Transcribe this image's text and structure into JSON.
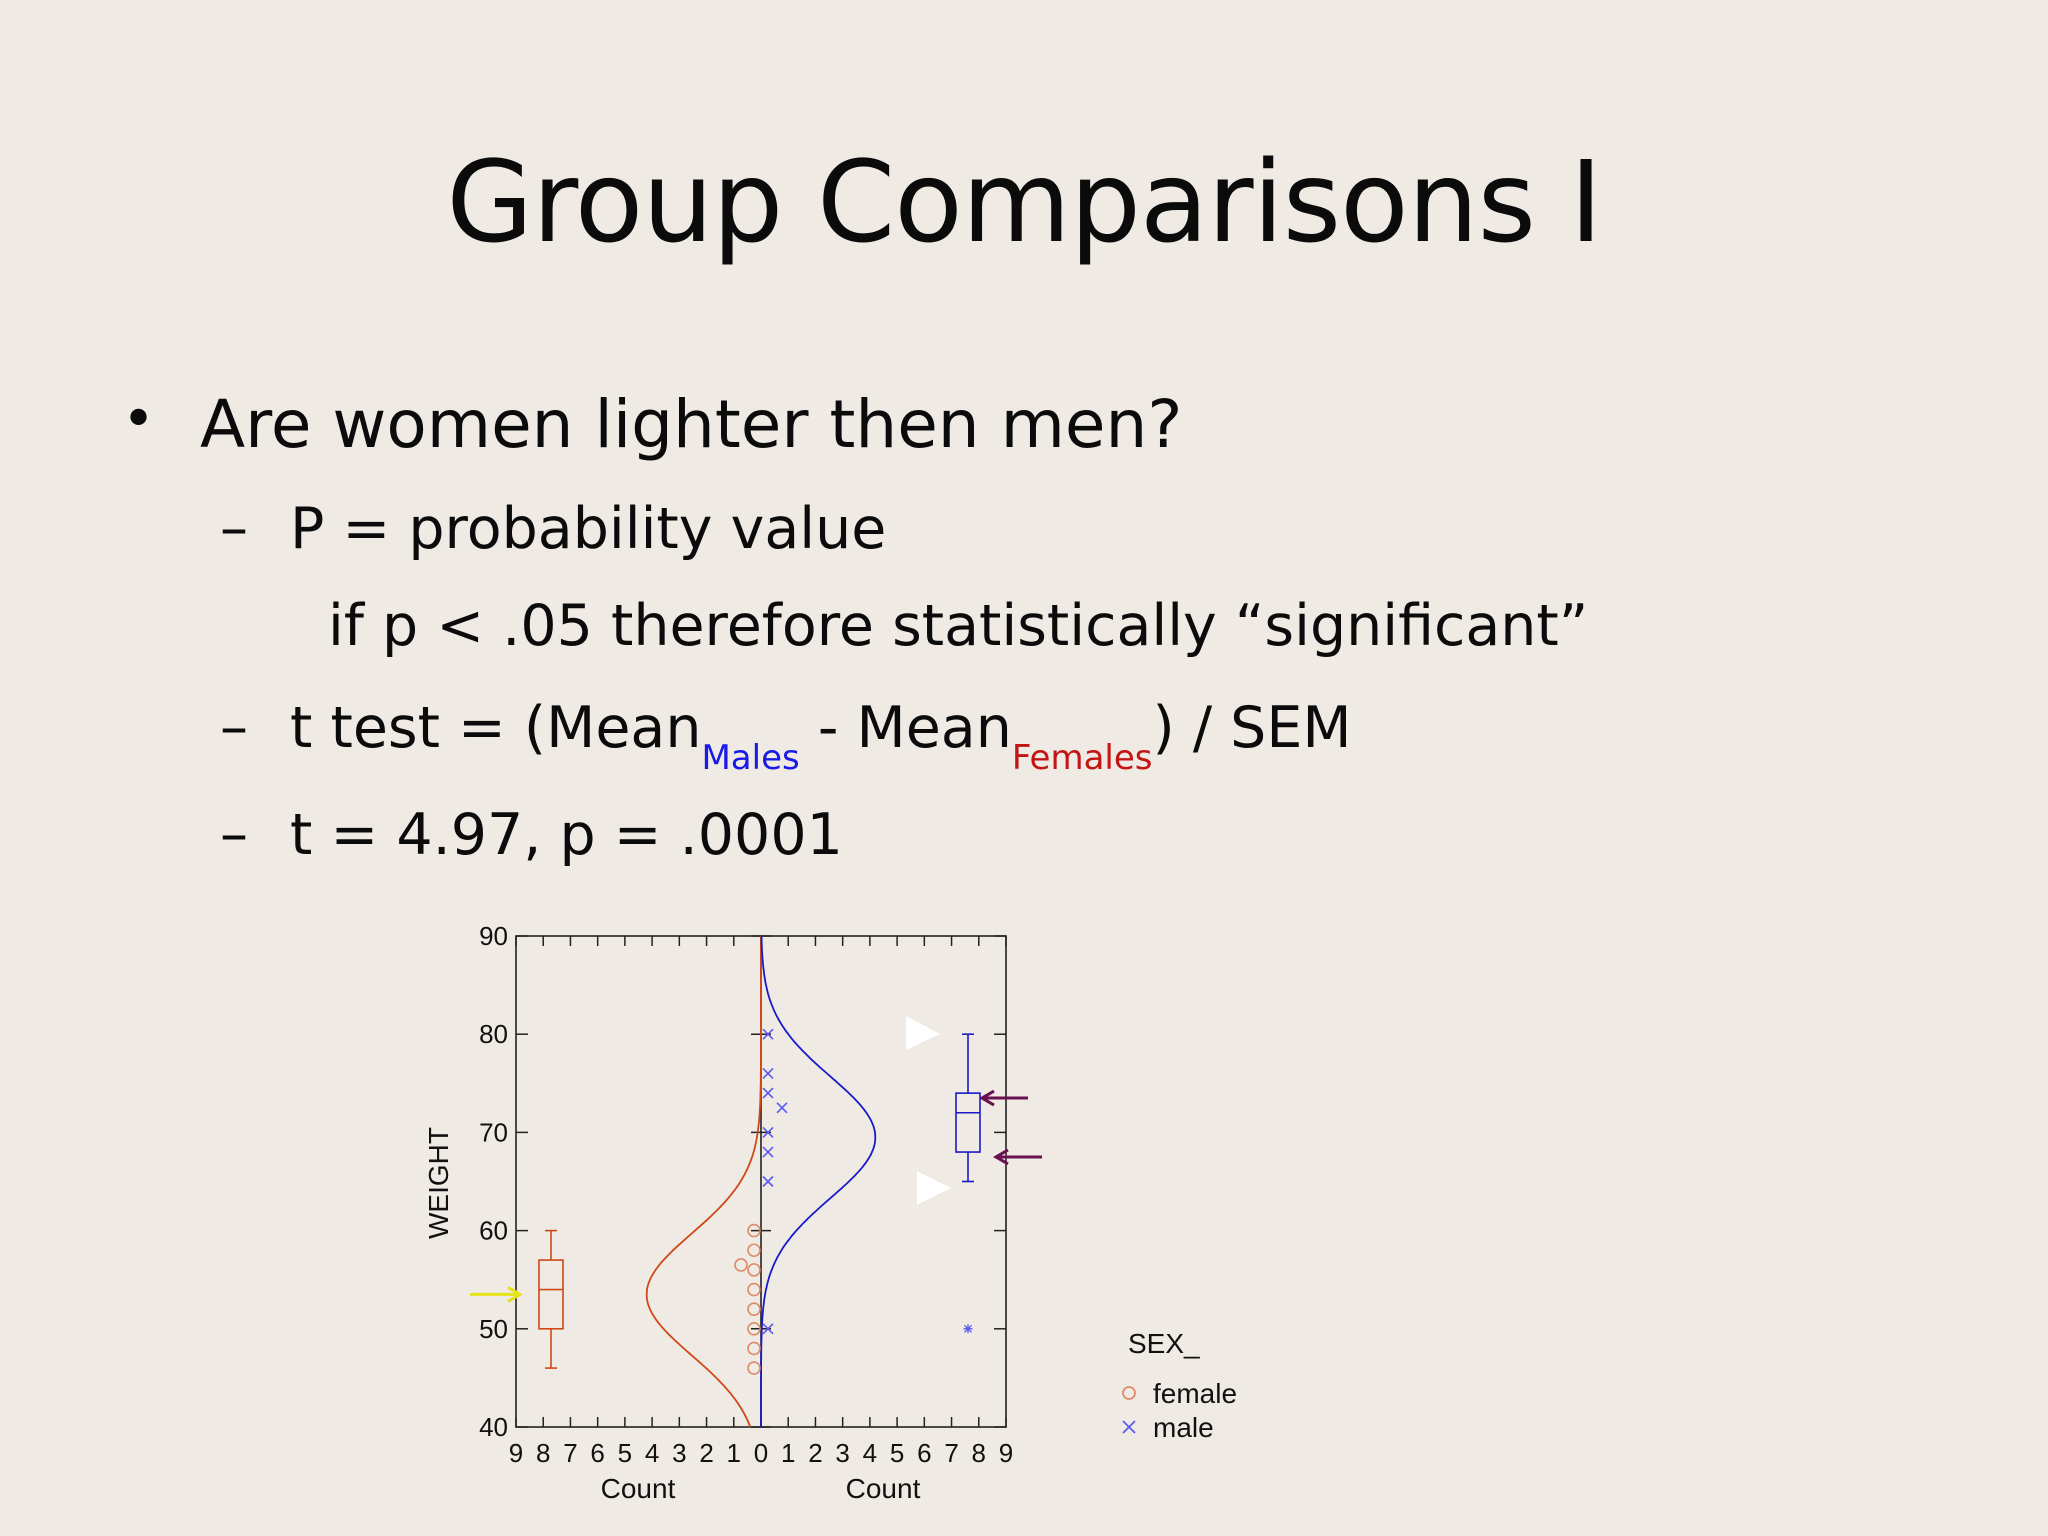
{
  "slide": {
    "title": "Group Comparisons I",
    "bullet": "Are women lighter then men?",
    "items": [
      {
        "dash": "–",
        "text": "P = probability value"
      },
      {
        "text": "if p < .05 therefore statistically “significant”"
      },
      {
        "dash": "–",
        "prefix": "t test = (Mean",
        "sub1": "Males",
        "mid": " - Mean",
        "sub2": "Females",
        "suffix": ") / SEM"
      },
      {
        "dash": "–",
        "text": "t = 4.97, p = .0001"
      }
    ],
    "colors": {
      "males": "#1a1ae6",
      "females": "#c41414",
      "background": "#efebe4"
    }
  },
  "chart_data": {
    "type": "scatter",
    "ylabel": "WEIGHT",
    "ylim": [
      40,
      90
    ],
    "yticks": [
      "40",
      "50",
      "60",
      "70",
      "80",
      "90"
    ],
    "left_xlabel": "Count",
    "right_xlabel": "Count",
    "left_xticks": [
      "9",
      "8",
      "7",
      "6",
      "5",
      "4",
      "3",
      "2",
      "1",
      "0"
    ],
    "right_xticks": [
      "1",
      "2",
      "3",
      "4",
      "5",
      "6",
      "7",
      "8",
      "9"
    ],
    "legend_title": "SEX_",
    "series": [
      {
        "name": "female",
        "marker": "circle",
        "color": "#e08a6a",
        "curve_color": "#d04818",
        "points": [
          46,
          48,
          50,
          52,
          54,
          56,
          56.5,
          58,
          60
        ],
        "offset_point": 56.5,
        "normal_mean": 53.5,
        "box": {
          "min": 46,
          "q1": 50,
          "median": 54,
          "q3": 57,
          "max": 60
        }
      },
      {
        "name": "male",
        "marker": "x",
        "color": "#5a5af0",
        "curve_color": "#1a1ac8",
        "points": [
          50,
          65,
          68,
          70,
          72.5,
          74,
          76,
          80
        ],
        "offset_point": 72.5,
        "normal_mean": 69.5,
        "box": {
          "min": 65,
          "q1": 68,
          "median": 72,
          "q3": 74,
          "max": 80
        },
        "outlier": 50
      }
    ]
  }
}
